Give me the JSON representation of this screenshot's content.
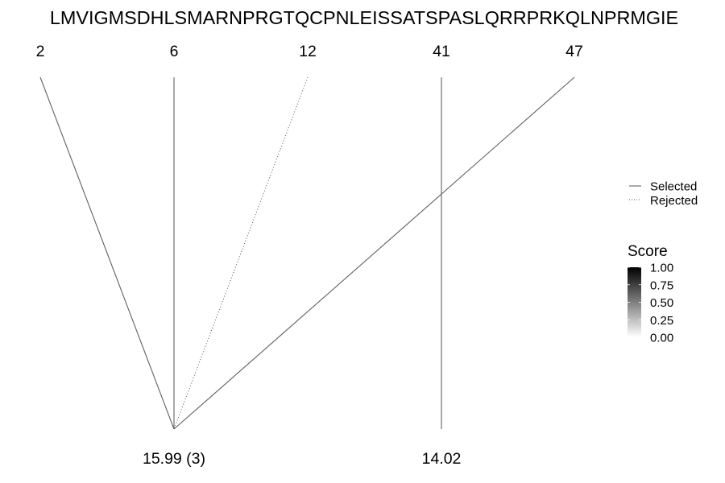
{
  "sequence": "LMVIGMSDHLSMARNPRGTQCPNLEISSATSPASLQRRPRKQLNPRMGIE",
  "positions": [
    "2",
    "6",
    "12",
    "41",
    "47"
  ],
  "masses": [
    {
      "label": "15.99 (3)",
      "anchor_position": "6"
    },
    {
      "label": "14.02",
      "anchor_position": "41"
    }
  ],
  "links": [
    {
      "from": "2",
      "to": "15.99 (3)",
      "status": "Selected",
      "score": 0.62
    },
    {
      "from": "6",
      "to": "15.99 (3)",
      "status": "Selected",
      "score": 0.62
    },
    {
      "from": "12",
      "to": "15.99 (3)",
      "status": "Rejected",
      "score": 0.62
    },
    {
      "from": "47",
      "to": "15.99 (3)",
      "status": "Selected",
      "score": 0.62
    },
    {
      "from": "41",
      "to": "14.02",
      "status": "Selected",
      "score": 0.62
    }
  ],
  "legend_linetype": {
    "items": [
      {
        "label": "Selected",
        "style": "solid"
      },
      {
        "label": "Rejected",
        "style": "dotted"
      }
    ]
  },
  "legend_score": {
    "title": "Score",
    "ticks": [
      "1.00",
      "0.75",
      "0.50",
      "0.25",
      "0.00"
    ],
    "color_high": "#000000",
    "color_low": "#ffffff"
  }
}
